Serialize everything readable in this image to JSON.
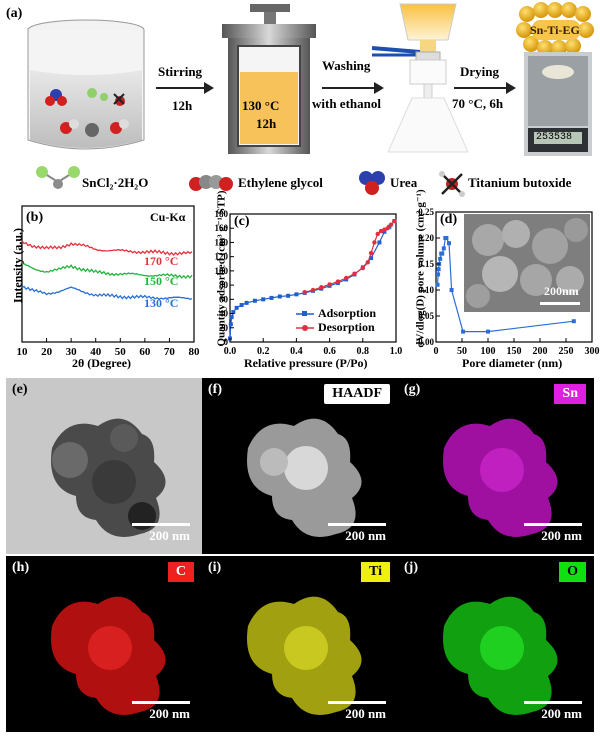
{
  "panel_a": {
    "label": "(a)",
    "step1": {
      "label": "Stirring",
      "time": "12h"
    },
    "autoclave": {
      "temp": "130 °C",
      "time": "12h"
    },
    "step2": {
      "label": "Washing",
      "sub": "with ethanol"
    },
    "step3": {
      "label": "Drying",
      "sub": "70 °C, 6h"
    },
    "product": "Sn-Ti-EG",
    "scale_reading": "253538",
    "legend": [
      "SnCl₂·2H₂O",
      "Ethylene glycol",
      "Urea",
      "Titanium butoxide"
    ]
  },
  "panel_b": {
    "label": "(b)",
    "annotation": "Cu-Kα",
    "xlabel": "2θ (Degree)",
    "ylabel": "Intensity (a.u.)",
    "xticks": [
      "10",
      "20",
      "30",
      "40",
      "50",
      "60",
      "70",
      "80"
    ],
    "series_labels": [
      "170 °C",
      "150 °C",
      "130 °C"
    ]
  },
  "panel_c": {
    "label": "(c)",
    "xlabel": "Relative pressure (P/Po)",
    "ylabel": "Quantity adsorbed (cm³ g⁻¹ STP)",
    "xticks": [
      "0.0",
      "0.2",
      "0.4",
      "0.6",
      "0.8",
      "1.0"
    ],
    "yticks": [
      "0",
      "20",
      "40",
      "60",
      "80",
      "100",
      "120",
      "140",
      "160",
      "180"
    ],
    "legend": [
      "Adsorption",
      "Desorption"
    ]
  },
  "panel_d": {
    "label": "(d)",
    "xlabel": "Pore diameter (nm)",
    "ylabel": "dV/dlog(D) pore volume (cm³ g⁻¹)",
    "xticks": [
      "0",
      "50",
      "100",
      "150",
      "200",
      "250",
      "300"
    ],
    "yticks": [
      "0.00",
      "0.05",
      "0.10",
      "0.15",
      "0.20",
      "0.25"
    ],
    "inset_scale": "200nm"
  },
  "panel_e": {
    "label": "(e)",
    "scale": "200 nm"
  },
  "panel_f": {
    "label": "(f)",
    "tag": "HAADF",
    "scale": "200 nm"
  },
  "panel_g": {
    "label": "(g)",
    "tag": "Sn",
    "scale": "200 nm"
  },
  "panel_h": {
    "label": "(h)",
    "tag": "C",
    "scale": "200 nm"
  },
  "panel_i": {
    "label": "(i)",
    "tag": "Ti",
    "scale": "200 nm"
  },
  "panel_j": {
    "label": "(j)",
    "tag": "O",
    "scale": "200 nm"
  },
  "colors": {
    "red": "#e8303a",
    "green": "#22b33a",
    "blue": "#2a6fd6",
    "adsorption": "#1f5fd0",
    "desorption": "#e03040",
    "sn": "#e020e0",
    "c": "#ee2020",
    "ti": "#e0e010",
    "o": "#10e010"
  },
  "chart_data": [
    {
      "type": "line",
      "title": "",
      "xlabel": "2θ (Degree)",
      "ylabel": "Intensity (a.u.)",
      "xlim": [
        10,
        80
      ],
      "series": [
        {
          "name": "170 °C",
          "x": [
            10,
            15,
            20,
            25,
            30,
            35,
            40,
            45,
            50,
            55,
            60,
            65,
            70,
            75,
            80
          ],
          "values": [
            1.0,
            0.85,
            0.75,
            0.78,
            0.95,
            0.85,
            0.72,
            0.68,
            0.66,
            0.64,
            0.62,
            0.6,
            0.58,
            0.57,
            0.56
          ]
        },
        {
          "name": "150 °C",
          "x": [
            10,
            15,
            20,
            25,
            30,
            35,
            40,
            45,
            50,
            55,
            60,
            65,
            70,
            75,
            80
          ],
          "values": [
            1.0,
            0.8,
            0.72,
            0.78,
            0.92,
            0.8,
            0.68,
            0.64,
            0.62,
            0.6,
            0.58,
            0.56,
            0.55,
            0.54,
            0.53
          ]
        },
        {
          "name": "130 °C",
          "x": [
            10,
            15,
            20,
            25,
            30,
            35,
            40,
            45,
            50,
            55,
            60,
            65,
            70,
            75,
            80
          ],
          "values": [
            1.0,
            0.8,
            0.7,
            0.8,
            0.92,
            0.78,
            0.66,
            0.62,
            0.6,
            0.58,
            0.56,
            0.55,
            0.54,
            0.53,
            0.52
          ]
        }
      ]
    },
    {
      "type": "line",
      "xlabel": "Relative pressure (P/Po)",
      "ylabel": "Quantity adsorbed (cm³ g⁻¹ STP)",
      "xlim": [
        0,
        1.0
      ],
      "ylim": [
        0,
        180
      ],
      "series": [
        {
          "name": "Adsorption",
          "x": [
            0.0,
            0.005,
            0.01,
            0.02,
            0.04,
            0.07,
            0.1,
            0.15,
            0.2,
            0.25,
            0.3,
            0.35,
            0.4,
            0.45,
            0.5,
            0.55,
            0.6,
            0.65,
            0.7,
            0.75,
            0.8,
            0.85,
            0.9,
            0.93,
            0.96,
            0.99
          ],
          "values": [
            5,
            25,
            35,
            42,
            48,
            52,
            55,
            58,
            60,
            62,
            64,
            65,
            67,
            69,
            72,
            75,
            79,
            83,
            88,
            95,
            105,
            118,
            140,
            155,
            162,
            170
          ]
        },
        {
          "name": "Desorption",
          "x": [
            0.99,
            0.97,
            0.95,
            0.93,
            0.91,
            0.89,
            0.87,
            0.85,
            0.83,
            0.8,
            0.75,
            0.7,
            0.65,
            0.6,
            0.55,
            0.5,
            0.45
          ],
          "values": [
            170,
            165,
            160,
            158,
            156,
            152,
            140,
            125,
            112,
            104,
            96,
            90,
            85,
            81,
            77,
            73,
            70
          ]
        }
      ]
    },
    {
      "type": "line",
      "xlabel": "Pore diameter (nm)",
      "ylabel": "dV/dlog(D) pore volume (cm³ g⁻¹)",
      "xlim": [
        0,
        300
      ],
      "ylim": [
        0,
        0.25
      ],
      "series": [
        {
          "name": "",
          "x": [
            3,
            4,
            5,
            6,
            8,
            10,
            12,
            15,
            18,
            20,
            25,
            30,
            52,
            100,
            265
          ],
          "values": [
            0.11,
            0.13,
            0.14,
            0.15,
            0.16,
            0.17,
            0.17,
            0.18,
            0.2,
            0.2,
            0.19,
            0.1,
            0.02,
            0.02,
            0.04
          ]
        }
      ]
    }
  ]
}
